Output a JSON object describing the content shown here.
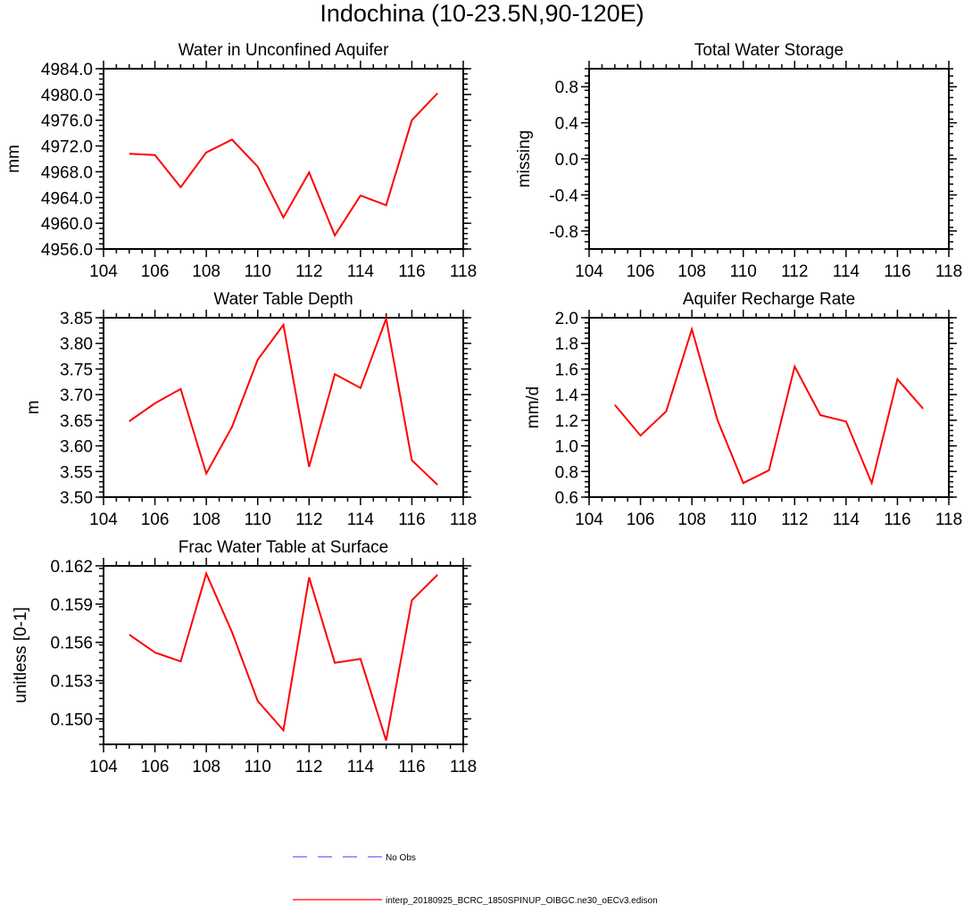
{
  "figure": {
    "title": "Indochina (10-23.5N,90-120E)"
  },
  "chart_data": [
    {
      "type": "line",
      "title": "Water in Unconfined Aquifer",
      "xlabel": "",
      "ylabel": "mm",
      "xlim": [
        104,
        118
      ],
      "ylim": [
        4956,
        4984
      ],
      "xticks": [
        104,
        106,
        108,
        110,
        112,
        114,
        116,
        118
      ],
      "yticks": [
        4956,
        4960,
        4964,
        4968,
        4972,
        4976,
        4980,
        4984
      ],
      "ytick_labels": [
        "4956.0",
        "4960.0",
        "4964.0",
        "4968.0",
        "4972.0",
        "4976.0",
        "4980.0",
        "4984.0"
      ],
      "x": [
        105,
        106,
        107,
        108,
        109,
        110,
        111,
        112,
        113,
        114,
        115,
        116,
        117
      ],
      "series": [
        {
          "name": "interp_20180925_BCRC_1850SPINUP_OIBGC.ne30_oECv3.edison",
          "color": "#ff0000",
          "values": [
            4970.8,
            4970.6,
            4965.6,
            4971.0,
            4973.0,
            4968.8,
            4960.9,
            4967.9,
            4958.1,
            4964.3,
            4962.8,
            4976.0,
            4980.2
          ]
        }
      ]
    },
    {
      "type": "line",
      "title": "Total Water Storage",
      "xlabel": "",
      "ylabel": "missing",
      "xlim": [
        104,
        118
      ],
      "ylim": [
        -1,
        1
      ],
      "xticks": [
        104,
        106,
        108,
        110,
        112,
        114,
        116,
        118
      ],
      "yticks": [
        -0.8,
        -0.4,
        0.0,
        0.4,
        0.8
      ],
      "ytick_labels": [
        "-0.8",
        "-0.4",
        "0.0",
        "0.4",
        "0.8"
      ],
      "x": [],
      "series": []
    },
    {
      "type": "line",
      "title": "Water Table Depth",
      "xlabel": "",
      "ylabel": "m",
      "xlim": [
        104,
        118
      ],
      "ylim": [
        3.5,
        3.85
      ],
      "xticks": [
        104,
        106,
        108,
        110,
        112,
        114,
        116,
        118
      ],
      "yticks": [
        3.5,
        3.55,
        3.6,
        3.65,
        3.7,
        3.75,
        3.8,
        3.85
      ],
      "ytick_labels": [
        "3.50",
        "3.55",
        "3.60",
        "3.65",
        "3.70",
        "3.75",
        "3.80",
        "3.85"
      ],
      "x": [
        105,
        106,
        107,
        108,
        109,
        110,
        111,
        112,
        113,
        114,
        115,
        116,
        117
      ],
      "series": [
        {
          "name": "interp_20180925_BCRC_1850SPINUP_OIBGC.ne30_oECv3.edison",
          "color": "#ff0000",
          "values": [
            3.648,
            3.683,
            3.711,
            3.546,
            3.637,
            3.768,
            3.836,
            3.559,
            3.74,
            3.713,
            3.848,
            3.572,
            3.524
          ]
        }
      ]
    },
    {
      "type": "line",
      "title": "Aquifer Recharge Rate",
      "xlabel": "",
      "ylabel": "mm/d",
      "xlim": [
        104,
        118
      ],
      "ylim": [
        0.6,
        2.0
      ],
      "xticks": [
        104,
        106,
        108,
        110,
        112,
        114,
        116,
        118
      ],
      "yticks": [
        0.6,
        0.8,
        1.0,
        1.2,
        1.4,
        1.6,
        1.8,
        2.0
      ],
      "ytick_labels": [
        "0.6",
        "0.8",
        "1.0",
        "1.2",
        "1.4",
        "1.6",
        "1.8",
        "2.0"
      ],
      "x": [
        105,
        106,
        107,
        108,
        109,
        110,
        111,
        112,
        113,
        114,
        115,
        116,
        117
      ],
      "series": [
        {
          "name": "interp_20180925_BCRC_1850SPINUP_OIBGC.ne30_oECv3.edison",
          "color": "#ff0000",
          "values": [
            1.32,
            1.08,
            1.27,
            1.91,
            1.2,
            0.71,
            0.81,
            1.62,
            1.24,
            1.19,
            0.71,
            1.52,
            1.29
          ]
        }
      ]
    },
    {
      "type": "line",
      "title": "Frac Water Table at Surface",
      "xlabel": "",
      "ylabel": "unitless [0-1]",
      "xlim": [
        104,
        118
      ],
      "ylim": [
        0.148,
        0.162
      ],
      "xticks": [
        104,
        106,
        108,
        110,
        112,
        114,
        116,
        118
      ],
      "yticks": [
        0.15,
        0.153,
        0.156,
        0.159,
        0.162
      ],
      "ytick_labels": [
        "0.150",
        "0.153",
        "0.156",
        "0.159",
        "0.162"
      ],
      "x": [
        105,
        106,
        107,
        108,
        109,
        110,
        111,
        112,
        113,
        114,
        115,
        116,
        117
      ],
      "series": [
        {
          "name": "interp_20180925_BCRC_1850SPINUP_OIBGC.ne30_oECv3.edison",
          "color": "#ff0000",
          "values": [
            0.1566,
            0.1552,
            0.1545,
            0.1614,
            0.1568,
            0.1514,
            0.1491,
            0.1611,
            0.1544,
            0.1547,
            0.1483,
            0.1593,
            0.1613
          ]
        }
      ]
    }
  ],
  "legend": [
    {
      "label": "No Obs",
      "color": "#6060ff",
      "style": "dashed"
    },
    {
      "label": "interp_20180925_BCRC_1850SPINUP_OIBGC.ne30_oECv3.edison",
      "color": "#ff0000",
      "style": "solid"
    }
  ]
}
